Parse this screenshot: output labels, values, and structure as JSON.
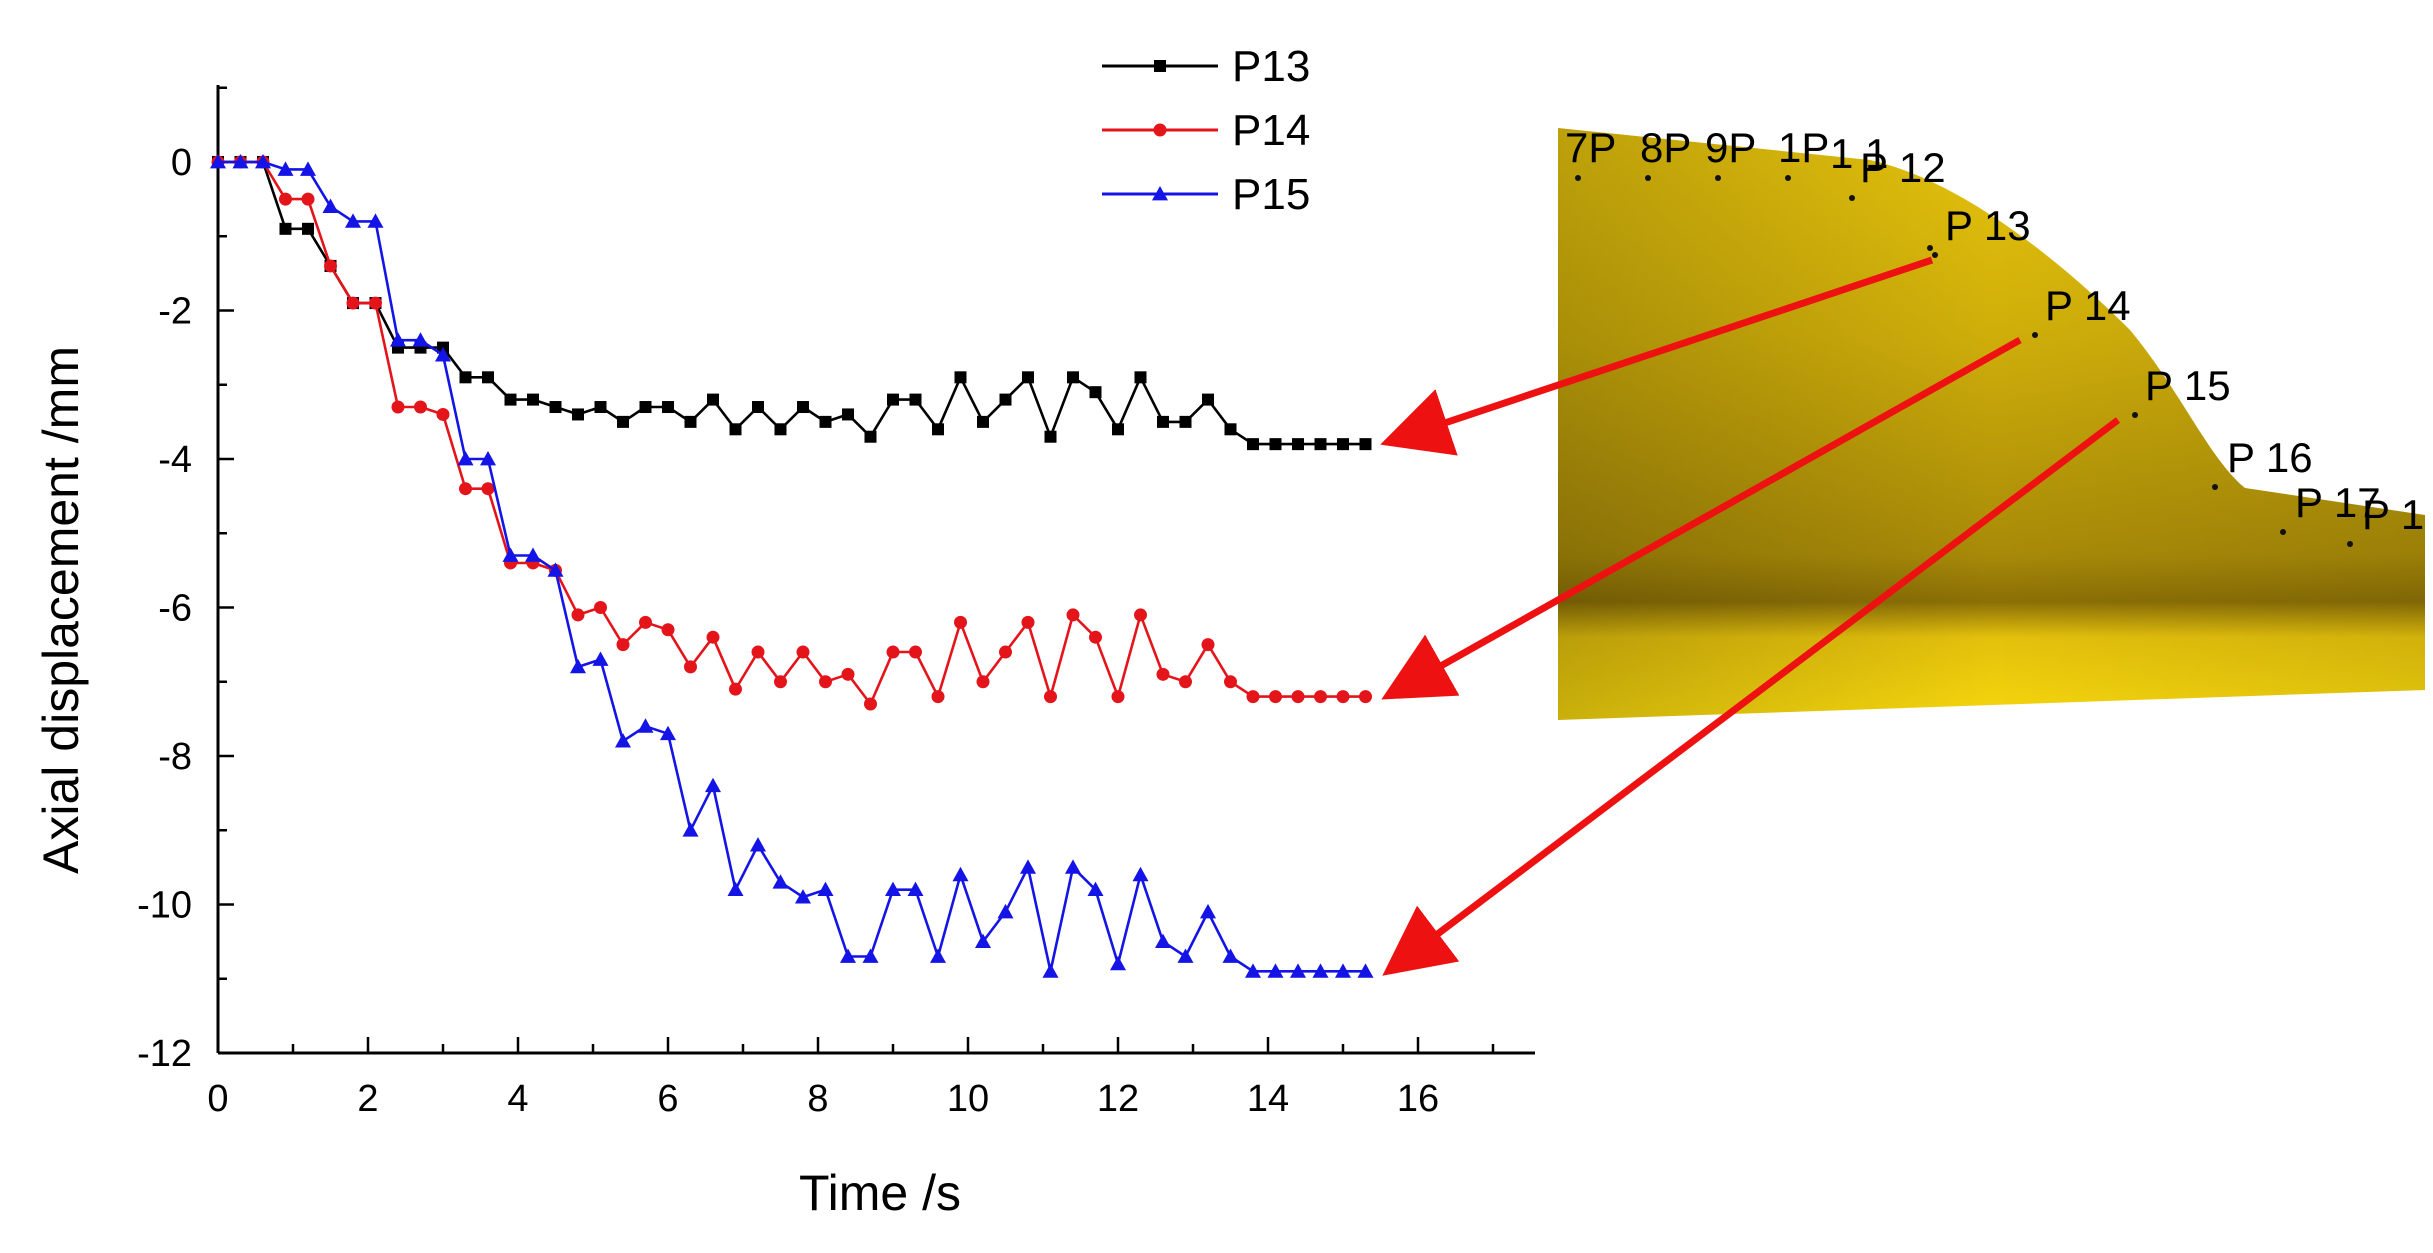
{
  "colors": {
    "P13": "#000000",
    "P14": "#e4141b",
    "P15": "#1414e6",
    "arrow": "#ee1111",
    "model_light": "#f2d30c",
    "model_mid": "#c9aa0a",
    "model_dark": "#8f7206"
  },
  "chart_data": {
    "type": "line",
    "title": "",
    "xlabel": "Time /s",
    "ylabel": "Axial displacement /mm",
    "xlim": [
      0,
      17.5
    ],
    "ylim": [
      -12,
      1
    ],
    "xticks": [
      "0",
      "2",
      "4",
      "6",
      "8",
      "10",
      "12",
      "14",
      "16"
    ],
    "yticks": [
      "0",
      "-2",
      "-4",
      "-6",
      "-8",
      "-10",
      "-12"
    ],
    "grid": false,
    "legend_position": "top-center",
    "x": [
      0,
      0.3,
      0.6,
      0.9,
      1.2,
      1.5,
      1.8,
      2.1,
      2.4,
      2.7,
      3.0,
      3.3,
      3.6,
      3.9,
      4.2,
      4.5,
      4.8,
      5.1,
      5.4,
      5.7,
      6.0,
      6.3,
      6.6,
      6.9,
      7.2,
      7.5,
      7.8,
      8.1,
      8.4,
      8.7,
      9.0,
      9.3,
      9.6,
      9.9,
      10.2,
      10.5,
      10.8,
      11.1,
      11.4,
      11.7,
      12.0,
      12.3,
      12.6,
      12.9,
      13.2,
      13.5,
      13.8,
      14.1,
      14.4,
      14.7,
      15.0,
      15.3
    ],
    "series": [
      {
        "name": "P13",
        "marker": "square",
        "values": [
          0,
          0,
          0,
          -0.9,
          -0.9,
          -1.4,
          -1.9,
          -1.9,
          -2.5,
          -2.5,
          -2.5,
          -2.9,
          -2.9,
          -3.2,
          -3.2,
          -3.3,
          -3.4,
          -3.3,
          -3.5,
          -3.3,
          -3.3,
          -3.5,
          -3.2,
          -3.6,
          -3.3,
          -3.6,
          -3.3,
          -3.5,
          -3.4,
          -3.7,
          -3.2,
          -3.2,
          -3.6,
          -2.9,
          -3.5,
          -3.2,
          -2.9,
          -3.7,
          -2.9,
          -3.1,
          -3.6,
          -2.9,
          -3.5,
          -3.5,
          -3.2,
          -3.6,
          -3.8,
          -3.8,
          -3.8,
          -3.8,
          -3.8,
          -3.8
        ]
      },
      {
        "name": "P14",
        "marker": "circle",
        "values": [
          0,
          0,
          0,
          -0.5,
          -0.5,
          -1.4,
          -1.9,
          -1.9,
          -3.3,
          -3.3,
          -3.4,
          -4.4,
          -4.4,
          -5.4,
          -5.4,
          -5.5,
          -6.1,
          -6.0,
          -6.5,
          -6.2,
          -6.3,
          -6.8,
          -6.4,
          -7.1,
          -6.6,
          -7.0,
          -6.6,
          -7.0,
          -6.9,
          -7.3,
          -6.6,
          -6.6,
          -7.2,
          -6.2,
          -7.0,
          -6.6,
          -6.2,
          -7.2,
          -6.1,
          -6.4,
          -7.2,
          -6.1,
          -6.9,
          -7.0,
          -6.5,
          -7.0,
          -7.2,
          -7.2,
          -7.2,
          -7.2,
          -7.2,
          -7.2
        ]
      },
      {
        "name": "P15",
        "marker": "triangle",
        "values": [
          0,
          0,
          0,
          -0.1,
          -0.1,
          -0.6,
          -0.8,
          -0.8,
          -2.4,
          -2.4,
          -2.6,
          -4.0,
          -4.0,
          -5.3,
          -5.3,
          -5.5,
          -6.8,
          -6.7,
          -7.8,
          -7.6,
          -7.7,
          -9.0,
          -8.4,
          -9.8,
          -9.2,
          -9.7,
          -9.9,
          -9.8,
          -10.7,
          -10.7,
          -9.8,
          -9.8,
          -10.7,
          -9.6,
          -10.5,
          -10.1,
          -9.5,
          -10.9,
          -9.5,
          -9.8,
          -10.8,
          -9.6,
          -10.5,
          -10.7,
          -10.1,
          -10.7,
          -10.9,
          -10.9,
          -10.9,
          -10.9,
          -10.9,
          -10.9
        ]
      }
    ]
  },
  "model": {
    "probe_labels": [
      "7P",
      "8P",
      "9P",
      "1P",
      "1 1",
      "P 12",
      "P 13",
      "P 14",
      "P 15",
      "P 16",
      "P 17",
      "P 1"
    ]
  }
}
